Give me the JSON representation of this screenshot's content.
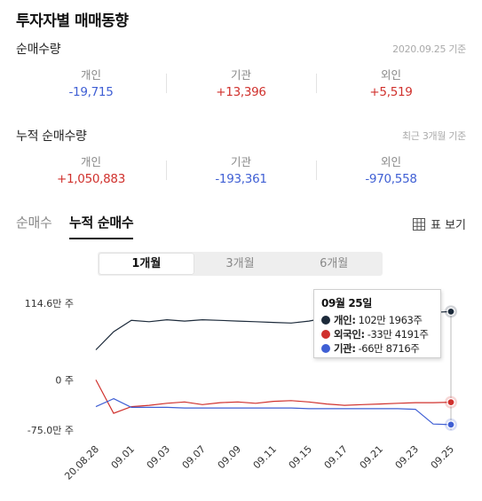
{
  "title": "투자자별 매매동향",
  "net": {
    "title": "순매수량",
    "date_note": "2020.09.25 기준",
    "items": [
      {
        "label": "개인",
        "value": "-19,715"
      },
      {
        "label": "기관",
        "value": "+13,396"
      },
      {
        "label": "외인",
        "value": "+5,519"
      }
    ]
  },
  "cumulative": {
    "title": "누적 순매수량",
    "date_note": "최근 3개월 기준",
    "items": [
      {
        "label": "개인",
        "value": "+1,050,883"
      },
      {
        "label": "기관",
        "value": "-193,361"
      },
      {
        "label": "외인",
        "value": "-970,558"
      }
    ]
  },
  "tabs": [
    "순매수",
    "누적 순매수"
  ],
  "active_tab": "누적 순매수",
  "table_view_label": "표 보기",
  "table_view_icon": "table-grid-icon",
  "periods": [
    "1개월",
    "3개월",
    "6개월"
  ],
  "active_period": "1개월",
  "colors": {
    "individual": "#1c2a3a",
    "foreign": "#d0312d",
    "institution": "#3f5fd4",
    "positive": "#d0312d",
    "negative": "#3f5fd4"
  },
  "tooltip": {
    "date": "09월 25일",
    "rows": [
      {
        "name": "개인:",
        "value": "102만 1963주",
        "color": "#1c2a3a"
      },
      {
        "name": "외국인:",
        "value": "-33만 4191주",
        "color": "#d0312d"
      },
      {
        "name": "기관:",
        "value": "-66만 8716주",
        "color": "#3f5fd4"
      }
    ]
  },
  "chart_data": {
    "type": "line",
    "x": [
      "20.08.28",
      "08.31",
      "09.01",
      "09.02",
      "09.03",
      "09.04",
      "09.07",
      "09.08",
      "09.09",
      "09.10",
      "09.11",
      "09.14",
      "09.15",
      "09.16",
      "09.17",
      "09.18",
      "09.21",
      "09.22",
      "09.23",
      "09.24",
      "09.25"
    ],
    "tick_labels": [
      "20.08.28",
      "09.01",
      "09.03",
      "09.07",
      "09.09",
      "09.11",
      "09.15",
      "09.17",
      "09.21",
      "09.23",
      "09.25"
    ],
    "y_tick_labels": [
      "114.6만 주",
      "0 주",
      "-75.0만 주"
    ],
    "y_ticks": [
      114.6,
      0,
      -75.0
    ],
    "unit": "만 주",
    "ylim": [
      -75.0,
      114.6
    ],
    "series": [
      {
        "name": "개인",
        "color": "#1c2a3a",
        "values": [
          45,
          72,
          89,
          87,
          90,
          88,
          90,
          89,
          88,
          87,
          86,
          85,
          88,
          93,
          95,
          96,
          97,
          98,
          100,
          101,
          102.2
        ]
      },
      {
        "name": "외국인",
        "color": "#d0312d",
        "values": [
          0,
          -50,
          -40,
          -38,
          -35,
          -33,
          -37,
          -34,
          -33,
          -35,
          -32,
          -31,
          -33,
          -36,
          -38,
          -37,
          -36,
          -35,
          -34,
          -34,
          -33.4
        ]
      },
      {
        "name": "기관",
        "color": "#3f5fd4",
        "values": [
          -40,
          -28,
          -41,
          -41,
          -41,
          -42,
          -42,
          -42,
          -42,
          -42,
          -42,
          -42,
          -43,
          -43,
          -43,
          -43,
          -43,
          -43,
          -44,
          -66,
          -66.9
        ]
      }
    ]
  }
}
